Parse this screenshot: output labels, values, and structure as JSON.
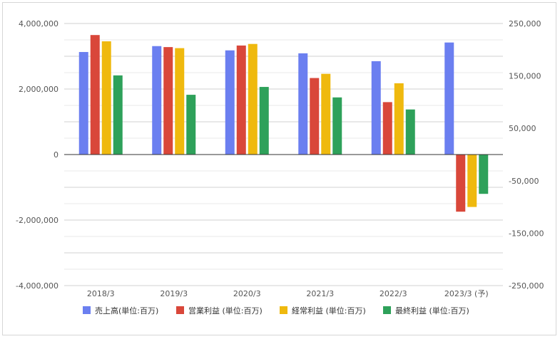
{
  "chart_data": {
    "type": "bar",
    "title": "",
    "categories": [
      "2018/3",
      "2019/3",
      "2020/3",
      "2021/3",
      "2022/3",
      "2023/3 (予)"
    ],
    "left_axis": {
      "ylim": [
        -4000000,
        4000000
      ],
      "ticks": [
        4000000,
        2000000,
        0,
        -2000000,
        -4000000
      ],
      "tick_labels": [
        "4,000,000",
        "2,000,000",
        "0",
        "-2,000,000",
        "-4,000,000"
      ]
    },
    "right_axis": {
      "ylim": [
        -250000,
        250000
      ],
      "ticks": [
        250000,
        150000,
        50000,
        -50000,
        -150000,
        -250000
      ],
      "tick_labels": [
        "250,000",
        "150,000",
        "50,000",
        "-50,000",
        "-150,000",
        "-250,000"
      ]
    },
    "grid": true,
    "legend_position": "bottom",
    "series": [
      {
        "name": "売上高(単位:百万)",
        "axis": "left",
        "color": "#6b7ff0",
        "values": [
          3130000,
          3310000,
          3180000,
          3090000,
          2850000,
          3420000
        ]
      },
      {
        "name": "営業利益 (単位:百万)",
        "axis": "right",
        "color": "#d9473a",
        "values": [
          228000,
          205000,
          208000,
          146000,
          100000,
          -109000
        ]
      },
      {
        "name": "経常利益 (単位:百万)",
        "axis": "right",
        "color": "#efb90e",
        "values": [
          216000,
          203000,
          211000,
          154000,
          136000,
          -100000
        ]
      },
      {
        "name": "最終利益 (単位:百万)",
        "axis": "right",
        "color": "#2ea15a",
        "values": [
          151000,
          114000,
          129000,
          109000,
          86000,
          -75000
        ]
      }
    ]
  }
}
